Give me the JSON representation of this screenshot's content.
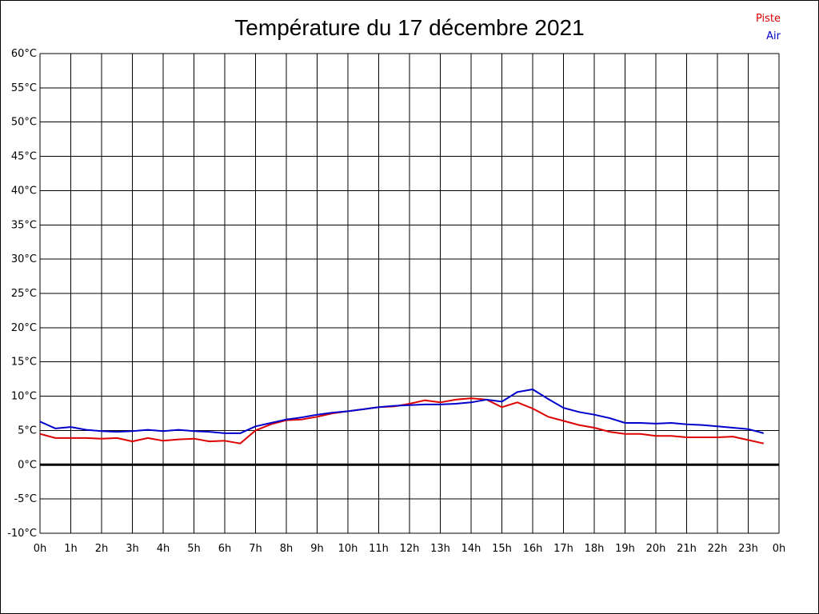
{
  "chart_data": {
    "type": "line",
    "title": "Température du 17 décembre 2021",
    "xlabel": "",
    "ylabel": "",
    "x_tick_labels": [
      "0h",
      "1h",
      "2h",
      "3h",
      "4h",
      "5h",
      "6h",
      "7h",
      "8h",
      "9h",
      "10h",
      "11h",
      "12h",
      "13h",
      "14h",
      "15h",
      "16h",
      "17h",
      "18h",
      "19h",
      "20h",
      "21h",
      "22h",
      "23h",
      "0h"
    ],
    "y_tick_labels": [
      "60°C",
      "55°C",
      "50°C",
      "45°C",
      "40°C",
      "35°C",
      "30°C",
      "25°C",
      "20°C",
      "15°C",
      "10°C",
      "5°C",
      "0°C",
      "-5°C",
      "-10°C"
    ],
    "xlim": [
      0,
      24
    ],
    "ylim": [
      -10,
      60
    ],
    "grid": true,
    "legend_position": "top-right",
    "x_hours": [
      0,
      0.5,
      1,
      1.5,
      2,
      2.5,
      3,
      3.5,
      4,
      4.5,
      5,
      5.5,
      6,
      6.5,
      7,
      7.5,
      8,
      8.5,
      9,
      9.5,
      10,
      10.5,
      11,
      11.5,
      12,
      12.5,
      13,
      13.5,
      14,
      14.5,
      15,
      15.5,
      16,
      16.5,
      17,
      17.5,
      18,
      18.5,
      19,
      19.5,
      20,
      20.5,
      21,
      21.5,
      22,
      22.5,
      23,
      23.5
    ],
    "series": [
      {
        "name": "Piste",
        "color": "#dd0000",
        "values": [
          4.5,
          3.9,
          3.9,
          3.9,
          3.8,
          3.9,
          3.4,
          3.9,
          3.5,
          3.7,
          3.8,
          3.4,
          3.5,
          3.1,
          5.0,
          5.9,
          6.5,
          6.6,
          7.0,
          7.5,
          7.8,
          8.1,
          8.4,
          8.5,
          8.9,
          9.4,
          9.1,
          9.5,
          9.7,
          9.5,
          8.4,
          9.1,
          8.2,
          7.0,
          6.4,
          5.8,
          5.4,
          4.8,
          4.5,
          4.5,
          4.2,
          4.2,
          4.0,
          4.0,
          4.0,
          4.1,
          3.6,
          3.1
        ]
      },
      {
        "name": "Air",
        "color": "#0000cc",
        "values": [
          6.3,
          5.3,
          5.5,
          5.1,
          4.9,
          4.8,
          4.9,
          5.1,
          4.9,
          5.1,
          4.9,
          4.8,
          4.6,
          4.6,
          5.6,
          6.1,
          6.6,
          6.9,
          7.3,
          7.6,
          7.8,
          8.1,
          8.4,
          8.6,
          8.7,
          8.8,
          8.8,
          8.9,
          9.1,
          9.5,
          9.2,
          10.6,
          11.0,
          9.6,
          8.3,
          7.7,
          7.3,
          6.8,
          6.1,
          6.1,
          6.0,
          6.1,
          5.9,
          5.8,
          5.6,
          5.4,
          5.2,
          4.6
        ]
      }
    ]
  }
}
